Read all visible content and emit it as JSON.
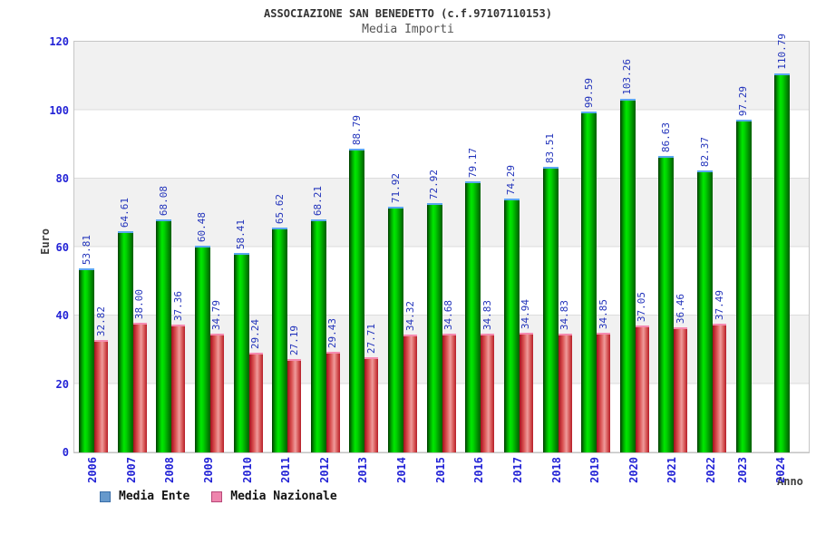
{
  "header": {
    "title": "ASSOCIAZIONE SAN BENEDETTO (c.f.97107110153)",
    "subtitle": "Media Importi"
  },
  "chart_data": {
    "type": "bar",
    "title": "ASSOCIAZIONE SAN BENEDETTO (c.f.97107110153)",
    "subtitle": "Media Importi",
    "xlabel": "Anno",
    "ylabel": "Euro",
    "ylim": [
      0,
      120
    ],
    "yticks": [
      0,
      20,
      40,
      60,
      80,
      100,
      120
    ],
    "grid": "horizontal-bands-every-20",
    "legend_position": "bottom-left",
    "categories": [
      "2006",
      "2007",
      "2008",
      "2009",
      "2010",
      "2011",
      "2012",
      "2013",
      "2014",
      "2015",
      "2016",
      "2017",
      "2018",
      "2019",
      "2020",
      "2021",
      "2022",
      "2023",
      "2024"
    ],
    "series": [
      {
        "name": "Media Ente",
        "bar_color": "#00cc00",
        "bar_cap_color": "#5aa7f0",
        "legend_color": "#6699cc",
        "values": [
          53.81,
          64.61,
          68.08,
          60.48,
          58.41,
          65.62,
          68.21,
          88.79,
          71.92,
          72.92,
          79.17,
          74.29,
          83.51,
          99.59,
          103.26,
          86.63,
          82.37,
          97.29,
          110.79
        ]
      },
      {
        "name": "Media Nazionale",
        "bar_color": "#e06060",
        "bar_cap_color": "#f58bb0",
        "legend_color": "#ee85ad",
        "values": [
          32.82,
          38.0,
          37.36,
          34.79,
          29.24,
          27.19,
          29.43,
          27.71,
          34.32,
          34.68,
          34.83,
          34.94,
          34.83,
          34.85,
          37.05,
          36.46,
          37.49,
          null,
          null
        ]
      }
    ],
    "value_label_color": "#2233bb",
    "tick_label_color": "#2323d6"
  }
}
